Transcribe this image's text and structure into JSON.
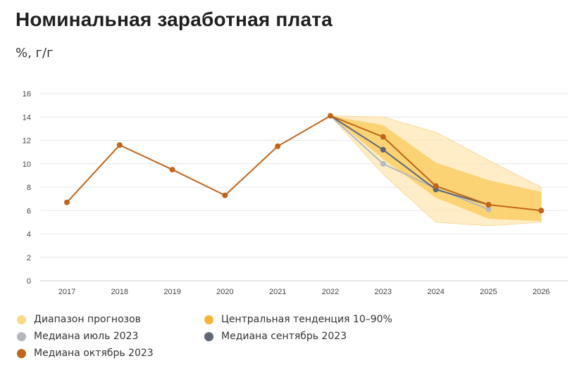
{
  "title": "Номинальная заработная плата",
  "subtitle": "%, г/г",
  "chart_data": {
    "type": "line",
    "x": [
      "2017",
      "2018",
      "2019",
      "2020",
      "2021",
      "2022",
      "2023",
      "2024",
      "2025",
      "2026"
    ],
    "ylim": [
      0,
      16
    ],
    "yticks": [
      0,
      2,
      4,
      6,
      8,
      10,
      12,
      14,
      16
    ],
    "grid": true,
    "legend_position": "bottom",
    "bands": [
      {
        "name": "Диапазон прогнозов",
        "color": "#fde7b3",
        "x": [
          "2022",
          "2023",
          "2024",
          "2025",
          "2026"
        ],
        "lower": [
          14.1,
          9.1,
          5.0,
          4.7,
          5.0
        ],
        "upper": [
          14.1,
          14.0,
          12.7,
          10.3,
          8.0
        ]
      },
      {
        "name": "Центральная тенденция 10–90%",
        "color": "#fccf6a",
        "x": [
          "2022",
          "2023",
          "2024",
          "2025",
          "2026"
        ],
        "lower": [
          14.1,
          10.4,
          7.1,
          5.3,
          5.1
        ],
        "upper": [
          14.1,
          13.3,
          10.1,
          8.6,
          7.6
        ]
      }
    ],
    "series": [
      {
        "name": "Медиана июль 2023",
        "color": "#b5b8bd",
        "x": [
          "2022",
          "2023",
          "2024",
          "2025"
        ],
        "values": [
          14.1,
          10.0,
          7.9,
          6.1
        ]
      },
      {
        "name": "Медиана сентябрь 2023",
        "color": "#616775",
        "x": [
          "2022",
          "2023",
          "2024",
          "2025"
        ],
        "values": [
          14.1,
          11.2,
          7.8,
          6.5
        ]
      },
      {
        "name": "Медиана октябрь 2023",
        "color": "#c0651b",
        "x": [
          "2017",
          "2018",
          "2019",
          "2020",
          "2021",
          "2022",
          "2023",
          "2024",
          "2025",
          "2026"
        ],
        "values": [
          6.7,
          11.6,
          9.5,
          7.3,
          11.5,
          14.1,
          12.3,
          8.1,
          6.5,
          6.0
        ]
      }
    ]
  },
  "legend": [
    {
      "label": "Диапазон прогнозов",
      "color": "#fcd98a"
    },
    {
      "label": "Центральная тенденция 10–90%",
      "color": "#f9b43a"
    },
    {
      "label": "Медиана июль 2023",
      "color": "#b5b8bd"
    },
    {
      "label": "Медиана сентябрь 2023",
      "color": "#616775"
    },
    {
      "label": "Медиана октябрь 2023",
      "color": "#c0651b"
    }
  ]
}
